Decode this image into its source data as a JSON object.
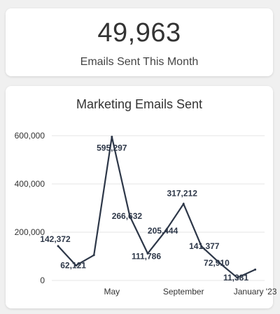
{
  "kpi": {
    "value": "49,963",
    "label": "Emails Sent This Month"
  },
  "colors": {
    "line": "#2d3748",
    "grid": "#e5e5e5",
    "text": "#333333"
  },
  "chart_data": {
    "type": "line",
    "title": "Marketing Emails Sent",
    "xlabel": "",
    "ylabel": "",
    "ylim": [
      0,
      600000
    ],
    "grid": true,
    "yticks": [
      0,
      200000,
      400000,
      600000
    ],
    "ytick_labels": [
      "0",
      "200,000",
      "400,000",
      "600,000"
    ],
    "xticks": [
      {
        "x": "2022-05",
        "label": "May"
      },
      {
        "x": "2022-09",
        "label": "September"
      },
      {
        "x": "2023-01",
        "label": "January '23"
      }
    ],
    "series": [
      {
        "points": [
          {
            "x": "2022-02",
            "y": 142372,
            "label": "142,372"
          },
          {
            "x": "2022-03",
            "y": 62121,
            "label": "62,121"
          },
          {
            "x": "2022-04",
            "y": 105000,
            "label": ""
          },
          {
            "x": "2022-05",
            "y": 595297,
            "label": "595,297"
          },
          {
            "x": "2022-06",
            "y": 266632,
            "label": "266,632"
          },
          {
            "x": "2022-07",
            "y": 111786,
            "label": "111,786"
          },
          {
            "x": "2022-08",
            "y": 205444,
            "label": "205,444"
          },
          {
            "x": "2022-09",
            "y": 317212,
            "label": "317,212"
          },
          {
            "x": "2022-10",
            "y": 141377,
            "label": "141,377"
          },
          {
            "x": "2022-11",
            "y": 72910,
            "label": "72,910"
          },
          {
            "x": "2022-12",
            "y": 11381,
            "label": "11,381"
          },
          {
            "x": "2023-01",
            "y": 45000,
            "label": ""
          }
        ]
      }
    ]
  }
}
